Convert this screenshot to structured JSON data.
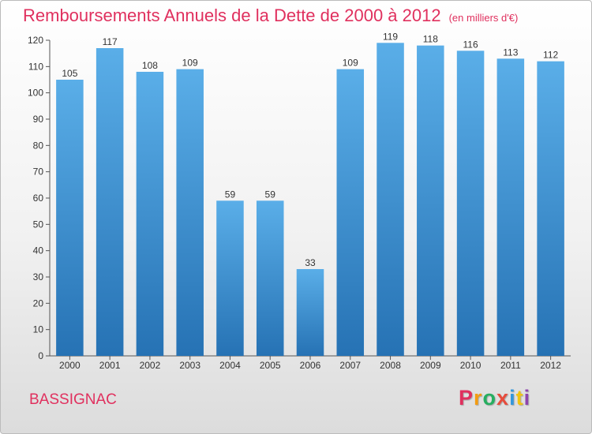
{
  "header": {
    "title": "Remboursements Annuels de la Dette de 2000 à 2012",
    "unit": "(en milliers d'€)"
  },
  "footer": {
    "commune": "BASSIGNAC",
    "logo_letters": [
      "P",
      "r",
      "o",
      "x",
      "i",
      "t",
      "i"
    ]
  },
  "colors": {
    "title": "#e0305e",
    "bar_top": "#5aaee8",
    "bar_bottom": "#2672b4",
    "logo": [
      "#e0305e",
      "#f39c12",
      "#27ae60",
      "#e74c3c",
      "#3498db",
      "#f1c40f",
      "#8e44ad"
    ]
  },
  "chart_data": {
    "type": "bar",
    "categories": [
      "2000",
      "2001",
      "2002",
      "2003",
      "2004",
      "2005",
      "2006",
      "2007",
      "2008",
      "2009",
      "2010",
      "2011",
      "2012"
    ],
    "values": [
      105,
      117,
      108,
      109,
      59,
      59,
      33,
      109,
      119,
      118,
      116,
      113,
      112
    ],
    "ylim": [
      0,
      120
    ],
    "yticks": [
      0,
      10,
      20,
      30,
      40,
      50,
      60,
      70,
      80,
      90,
      100,
      110,
      120
    ],
    "grid": false,
    "data_labels": true
  }
}
